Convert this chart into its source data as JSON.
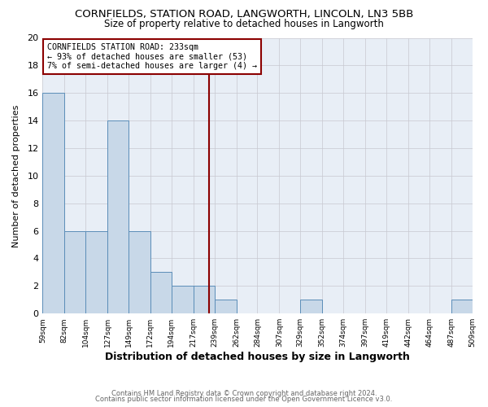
{
  "title": "CORNFIELDS, STATION ROAD, LANGWORTH, LINCOLN, LN3 5BB",
  "subtitle": "Size of property relative to detached houses in Langworth",
  "xlabel": "Distribution of detached houses by size in Langworth",
  "ylabel": "Number of detached properties",
  "annotation_line1": "CORNFIELDS STATION ROAD: 233sqm",
  "annotation_line2": "← 93% of detached houses are smaller (53)",
  "annotation_line3": "7% of semi-detached houses are larger (4) →",
  "bin_edges": [
    59,
    82,
    104,
    127,
    149,
    172,
    194,
    217,
    239,
    262,
    284,
    307,
    329,
    352,
    374,
    397,
    419,
    442,
    464,
    487,
    509
  ],
  "bin_labels": [
    "59sqm",
    "82sqm",
    "104sqm",
    "127sqm",
    "149sqm",
    "172sqm",
    "194sqm",
    "217sqm",
    "239sqm",
    "262sqm",
    "284sqm",
    "307sqm",
    "329sqm",
    "352sqm",
    "374sqm",
    "397sqm",
    "419sqm",
    "442sqm",
    "464sqm",
    "487sqm",
    "509sqm"
  ],
  "counts": [
    16,
    6,
    6,
    14,
    6,
    3,
    2,
    2,
    1,
    0,
    0,
    0,
    1,
    0,
    0,
    0,
    0,
    0,
    0,
    1
  ],
  "bar_color": "#c8d8e8",
  "bar_edge_color": "#5b8db8",
  "vline_color": "#8b0000",
  "vline_x": 233,
  "background_color": "#ffffff",
  "plot_bg_color": "#e8eef6",
  "grid_color": "#c8c8d0",
  "ylim": [
    0,
    20
  ],
  "yticks": [
    0,
    2,
    4,
    6,
    8,
    10,
    12,
    14,
    16,
    18,
    20
  ],
  "footer_line1": "Contains HM Land Registry data © Crown copyright and database right 2024.",
  "footer_line2": "Contains public sector information licensed under the Open Government Licence v3.0."
}
